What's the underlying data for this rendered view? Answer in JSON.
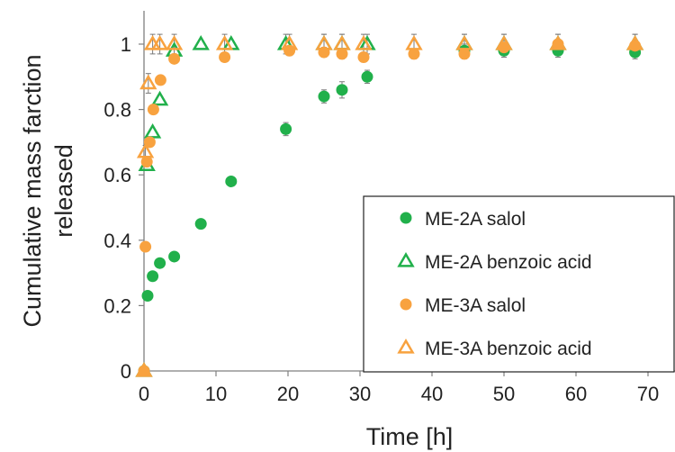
{
  "chart_data": {
    "type": "scatter",
    "title": "",
    "xlabel": "Time [h]",
    "ylabel_lines": [
      "Cumulative mass farction",
      "released"
    ],
    "xlim": [
      0,
      74
    ],
    "ylim": [
      0,
      1.1
    ],
    "xticks": [
      0,
      10,
      20,
      30,
      40,
      50,
      60,
      70
    ],
    "yticks": [
      0,
      0.2,
      0.4,
      0.6,
      0.8,
      1
    ],
    "ytick_labels": [
      "0",
      "0.2",
      "0.4",
      "0.6",
      "0.8",
      "1"
    ],
    "grid": false,
    "legend_position": "bottom-right",
    "series": [
      {
        "name": "ME-2A salol",
        "marker": "circle-filled",
        "color": "#21b04b",
        "points": [
          [
            0,
            0
          ],
          [
            0.5,
            0.23
          ],
          [
            1.2,
            0.29
          ],
          [
            2.2,
            0.33
          ],
          [
            4.2,
            0.35
          ],
          [
            7.9,
            0.45
          ],
          [
            12.1,
            0.58
          ],
          [
            19.7,
            0.74
          ],
          [
            25,
            0.84
          ],
          [
            27.5,
            0.86
          ],
          [
            31,
            0.9
          ],
          [
            44.5,
            0.98
          ],
          [
            50,
            0.98
          ],
          [
            57.5,
            0.98
          ],
          [
            68.2,
            0.975
          ]
        ],
        "errors": [
          0,
          0,
          0,
          0,
          0,
          0,
          0,
          0.02,
          0.02,
          0.025,
          0.02,
          0.02,
          0.02,
          0.02,
          0.02
        ]
      },
      {
        "name": "ME-2A benzoic acid",
        "marker": "triangle-open",
        "color": "#21b04b",
        "points": [
          [
            0,
            0
          ],
          [
            0.4,
            0.63
          ],
          [
            1.2,
            0.73
          ],
          [
            2.2,
            0.83
          ],
          [
            4.2,
            0.98
          ],
          [
            7.9,
            1.0
          ],
          [
            12.1,
            1.0
          ],
          [
            19.7,
            1.0
          ],
          [
            25,
            1.0
          ],
          [
            27.5,
            1.0
          ],
          [
            31,
            1.0
          ],
          [
            44.5,
            1.0
          ],
          [
            50,
            1.0
          ],
          [
            57.5,
            1.0
          ],
          [
            68.2,
            1.0
          ]
        ],
        "errors": [
          0,
          0,
          0,
          0,
          0,
          0,
          0,
          0.03,
          0.03,
          0.03,
          0.03,
          0.03,
          0.03,
          0.03,
          0.03
        ]
      },
      {
        "name": "ME-3A salol",
        "marker": "circle-filled",
        "color": "#f8a23f",
        "points": [
          [
            0,
            0
          ],
          [
            0.2,
            0.38
          ],
          [
            0.4,
            0.64
          ],
          [
            0.8,
            0.7
          ],
          [
            1.3,
            0.8
          ],
          [
            2.3,
            0.89
          ],
          [
            4.2,
            0.955
          ],
          [
            11.2,
            0.96
          ],
          [
            20.2,
            0.98
          ],
          [
            25,
            0.975
          ],
          [
            27.5,
            0.97
          ],
          [
            30.5,
            0.96
          ],
          [
            37.5,
            0.97
          ],
          [
            44.5,
            0.97
          ],
          [
            50,
            0.99
          ],
          [
            57.5,
            1.0
          ],
          [
            68.2,
            0.995
          ]
        ],
        "errors": [
          0,
          0,
          0,
          0,
          0,
          0,
          0.01,
          0.01,
          0.015,
          0.015,
          0.015,
          0.015,
          0.015,
          0.015,
          0.015,
          0.015,
          0.015
        ]
      },
      {
        "name": "ME-3A benzoic acid",
        "marker": "triangle-open",
        "color": "#f8a23f",
        "points": [
          [
            0,
            0
          ],
          [
            0.2,
            0.67
          ],
          [
            0.6,
            0.88
          ],
          [
            1.2,
            1.0
          ],
          [
            2.2,
            1.0
          ],
          [
            4.2,
            1.0
          ],
          [
            11.2,
            1.0
          ],
          [
            20.2,
            1.0
          ],
          [
            25,
            1.0
          ],
          [
            27.5,
            1.0
          ],
          [
            30.5,
            1.0
          ],
          [
            37.5,
            1.0
          ],
          [
            44.5,
            1.0
          ],
          [
            50,
            1.0
          ],
          [
            57.5,
            1.0
          ],
          [
            68.2,
            1.0
          ]
        ],
        "errors": [
          0,
          0.02,
          0.03,
          0.03,
          0.03,
          0.03,
          0.03,
          0.03,
          0.03,
          0.03,
          0.03,
          0.03,
          0.03,
          0.03,
          0.03,
          0.03
        ]
      }
    ]
  }
}
